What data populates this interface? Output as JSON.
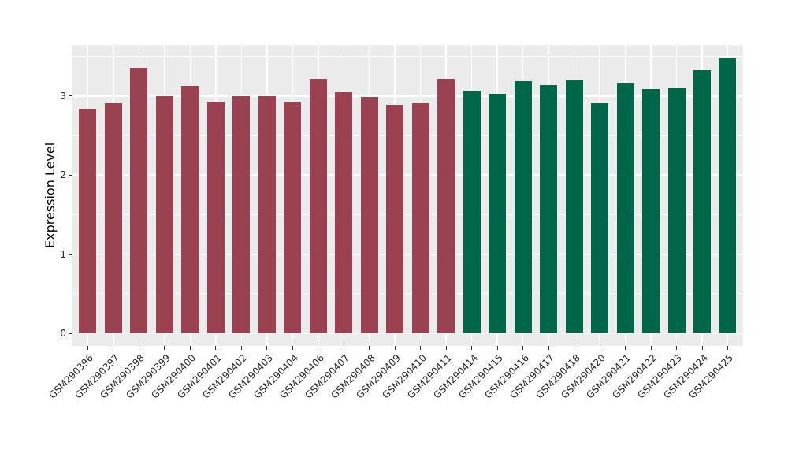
{
  "chart_data": {
    "type": "bar",
    "title": "",
    "xlabel": "",
    "ylabel": "Expression Level",
    "ylim": [
      0,
      3.64
    ],
    "yticks": [
      0,
      1,
      2,
      3
    ],
    "minor_gridlines": [
      0.5,
      1.5,
      2.5,
      3.5
    ],
    "grid": "white major+minor horizontal lines and white vertical line at each category, on gray panel",
    "legend": "none",
    "categories": [
      "GSM290396",
      "GSM290397",
      "GSM290398",
      "GSM290399",
      "GSM290400",
      "GSM290401",
      "GSM290402",
      "GSM290403",
      "GSM290404",
      "GSM290406",
      "GSM290407",
      "GSM290408",
      "GSM290409",
      "GSM290410",
      "GSM290411",
      "GSM290414",
      "GSM290415",
      "GSM290416",
      "GSM290417",
      "GSM290418",
      "GSM290420",
      "GSM290421",
      "GSM290422",
      "GSM290423",
      "GSM290424",
      "GSM290425"
    ],
    "values": [
      2.84,
      2.91,
      3.35,
      3.0,
      3.12,
      2.93,
      3.0,
      3.0,
      2.92,
      3.21,
      3.04,
      2.99,
      2.89,
      2.91,
      3.21,
      3.06,
      3.03,
      3.18,
      3.13,
      3.19,
      2.91,
      3.16,
      3.08,
      3.09,
      3.32,
      3.47
    ],
    "bar_groups": [
      0,
      0,
      0,
      0,
      0,
      0,
      0,
      0,
      0,
      0,
      0,
      0,
      0,
      0,
      0,
      1,
      1,
      1,
      1,
      1,
      1,
      1,
      1,
      1,
      1,
      1
    ],
    "group_colors": [
      "#9A4251",
      "#006649"
    ],
    "colors": {
      "panel_background": "#EBEBEB",
      "gridline": "#FFFFFF",
      "axis_text": "#262626",
      "axis_title": "#000000",
      "figure_background": "#FFFFFF"
    }
  }
}
